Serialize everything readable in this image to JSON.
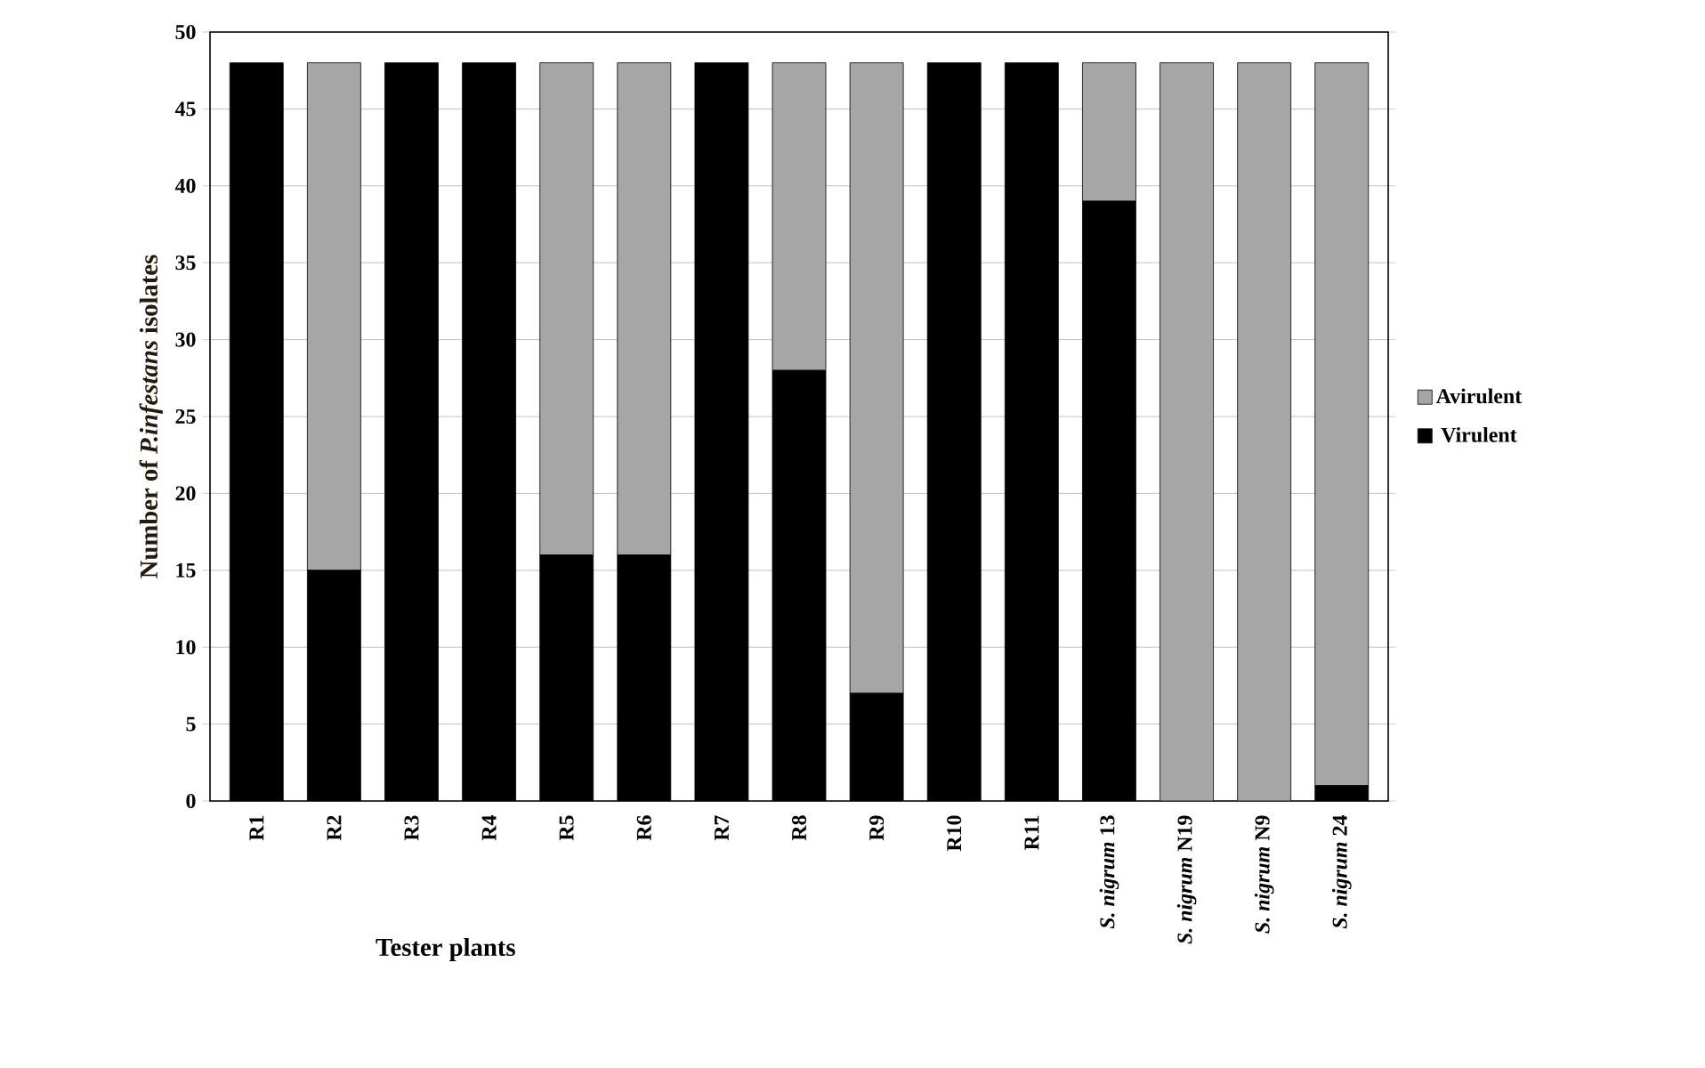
{
  "chart_data": {
    "type": "bar",
    "stacked": true,
    "xlabel": "Tester plants",
    "ylabel": "Number of *P.infestans* isolates",
    "categories": [
      "R1",
      "R2",
      "R3",
      "R4",
      "R5",
      "R6",
      "R7",
      "R8",
      "R9",
      "R10",
      "R11",
      "*S. nigrum* 13",
      "*S. nigrum* N19",
      "*S. nigrum* N9",
      "*S. nigrum* 24"
    ],
    "series": [
      {
        "name": "Virulent",
        "color": "#000000",
        "values": [
          48,
          15,
          48,
          48,
          16,
          16,
          48,
          28,
          7,
          48,
          48,
          39,
          0,
          0,
          1
        ]
      },
      {
        "name": "Avirulent",
        "color": "#a6a6a6",
        "values": [
          0,
          33,
          0,
          0,
          32,
          32,
          0,
          20,
          41,
          0,
          0,
          9,
          48,
          48,
          47
        ]
      }
    ],
    "ylim": [
      0,
      50
    ],
    "yticks": [
      0,
      5,
      10,
      15,
      20,
      25,
      30,
      35,
      40,
      45,
      50
    ],
    "grid": "y",
    "legend": "right"
  }
}
